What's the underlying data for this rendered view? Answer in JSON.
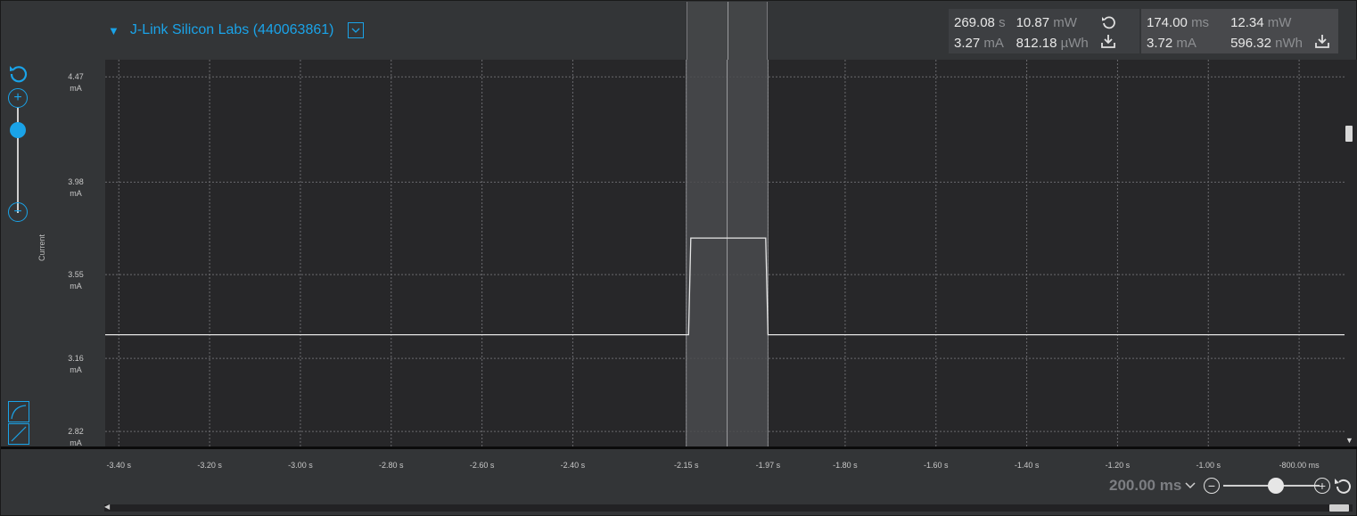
{
  "header": {
    "device_name": "J-Link Silicon Labs (440063861)"
  },
  "stats_window": {
    "duration": "269.08",
    "duration_unit": "s",
    "power": "10.87",
    "power_unit": "mW",
    "current": "3.27",
    "current_unit": "mA",
    "energy": "812.18",
    "energy_unit": "µWh"
  },
  "stats_selection": {
    "duration": "174.00",
    "duration_unit": "ms",
    "power": "12.34",
    "power_unit": "mW",
    "current": "3.72",
    "current_unit": "mA",
    "energy": "596.32",
    "energy_unit": "nWh"
  },
  "y_axis": {
    "label": "Current",
    "ticks": [
      {
        "value": "4.47",
        "unit": "mA"
      },
      {
        "value": "3.98",
        "unit": "mA"
      },
      {
        "value": "3.55",
        "unit": "mA"
      },
      {
        "value": "3.16",
        "unit": "mA"
      },
      {
        "value": "2.82",
        "unit": "mA"
      }
    ]
  },
  "x_axis": {
    "ticks": [
      "-3.40 s",
      "-3.20 s",
      "-3.00 s",
      "-2.80 s",
      "-2.60 s",
      "-2.40 s",
      "-2.15 s",
      "-1.97 s",
      "-1.80 s",
      "-1.60 s",
      "-1.40 s",
      "-1.20 s",
      "-1.00 s",
      "-800.00 ms"
    ]
  },
  "zoom": {
    "time_per_div": "200.00 ms"
  },
  "colors": {
    "accent": "#1aa3e8",
    "plot_bg": "#272729",
    "trace": "#e6e6e6",
    "selection": "#4a4b4e"
  },
  "chart_data": {
    "type": "line",
    "xlabel": "",
    "ylabel": "Current",
    "unit_y": "mA",
    "x_range_s": [
      -3.43,
      -0.7
    ],
    "y_range_mA": [
      2.75,
      4.55
    ],
    "selection_s": [
      -2.15,
      -1.97
    ],
    "cursor_s": -2.06,
    "series": [
      {
        "x": [
          -3.43,
          -2.145,
          -2.14,
          -1.975,
          -1.97,
          -0.7
        ],
        "y": [
          3.27,
          3.27,
          3.72,
          3.72,
          3.27,
          3.27
        ]
      }
    ]
  }
}
